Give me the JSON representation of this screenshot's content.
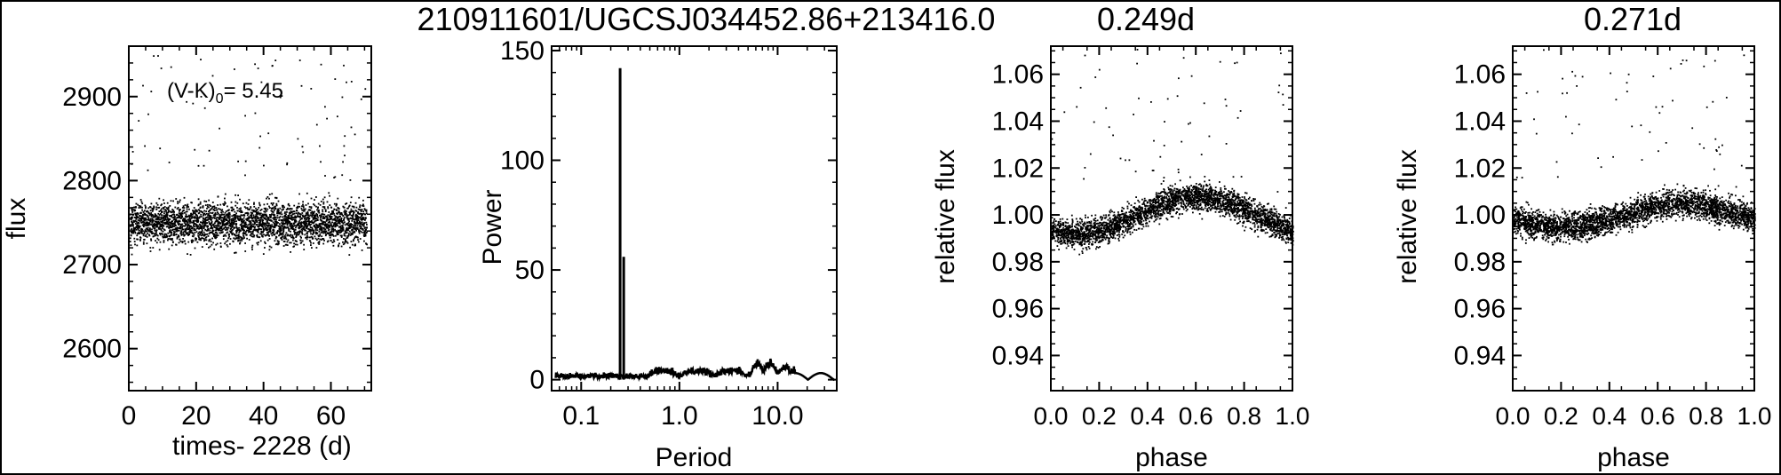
{
  "header": {
    "title": "210911601/UGCSJ034452.86+213416.0",
    "period1": "0.249d",
    "period2": "0.271d"
  },
  "chart_data": [
    {
      "type": "scatter",
      "panel": "lightcurve",
      "xlabel": "times- 2228 (d)",
      "ylabel": "flux",
      "xlim": [
        0,
        72
      ],
      "ylim": [
        2550,
        2960
      ],
      "xticks": [
        "0",
        "20",
        "40",
        "60"
      ],
      "yticks": [
        "2600",
        "2700",
        "2800",
        "2900"
      ],
      "annotation": "(V-K)",
      "annotation_sub": "0",
      "annotation_val": "= 5.45",
      "series": [
        {
          "mean": 2750,
          "scatter": 25,
          "n_points": 3300
        }
      ]
    },
    {
      "type": "line",
      "panel": "periodogram",
      "xlabel": "Period",
      "ylabel": "Power",
      "xscale": "log",
      "xlim": [
        0.05,
        40
      ],
      "ylim": [
        -5,
        152
      ],
      "xticks": [
        "0.1",
        "1.0",
        "10.0"
      ],
      "yticks": [
        "0",
        "50",
        "100",
        "150"
      ],
      "peaks": [
        {
          "x": 0.249,
          "y": 142
        },
        {
          "x": 0.271,
          "y": 56
        }
      ]
    },
    {
      "type": "scatter",
      "panel": "phase-folded-1",
      "xlabel": "phase",
      "ylabel": "relative flux",
      "xlim": [
        0,
        1
      ],
      "ylim": [
        0.925,
        1.072
      ],
      "xticks": [
        "0.0",
        "0.2",
        "0.4",
        "0.6",
        "0.8",
        "1.0"
      ],
      "yticks": [
        "0.94",
        "0.96",
        "0.98",
        "1.00",
        "1.02",
        "1.04",
        "1.06"
      ],
      "period": 0.249,
      "amplitude": 0.008,
      "phase_of_max": 0.6
    },
    {
      "type": "scatter",
      "panel": "phase-folded-2",
      "xlabel": "phase",
      "ylabel": "relative flux",
      "xlim": [
        0,
        1
      ],
      "ylim": [
        0.925,
        1.072
      ],
      "xticks": [
        "0.0",
        "0.2",
        "0.4",
        "0.6",
        "0.8",
        "1.0"
      ],
      "yticks": [
        "0.94",
        "0.96",
        "0.98",
        "1.00",
        "1.02",
        "1.04",
        "1.06"
      ],
      "period": 0.271,
      "amplitude": 0.005,
      "phase_of_max": 0.7
    }
  ]
}
